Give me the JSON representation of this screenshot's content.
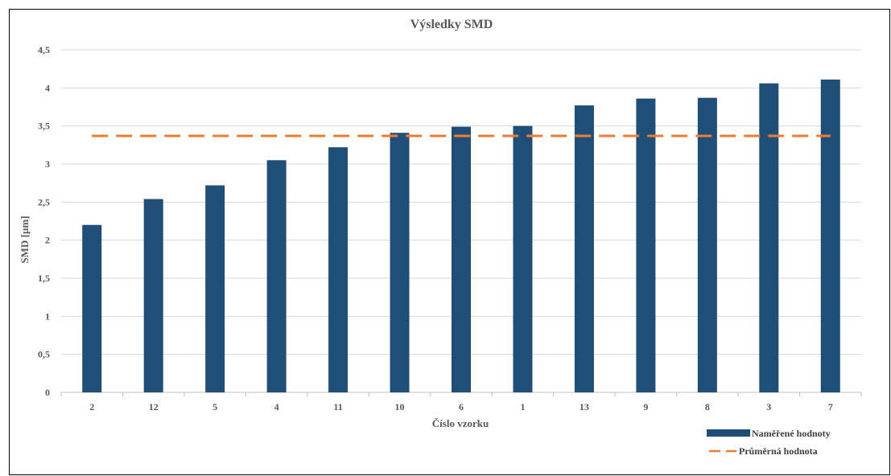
{
  "chart_data": {
    "type": "bar",
    "title": "Výsledky SMD",
    "xlabel": "Číslo vzorku",
    "ylabel": "SMD [µm]",
    "categories": [
      "2",
      "12",
      "5",
      "4",
      "11",
      "10",
      "6",
      "1",
      "13",
      "9",
      "8",
      "3",
      "7"
    ],
    "series": [
      {
        "name": "Naměřené hodnoty",
        "values": [
          2.2,
          2.54,
          2.72,
          3.05,
          3.22,
          3.41,
          3.49,
          3.5,
          3.77,
          3.86,
          3.87,
          4.06,
          4.11
        ],
        "color": "#1F4E79"
      }
    ],
    "average_line": {
      "name": "Průměrná hodnota",
      "value": 3.37,
      "color": "#ED7D31",
      "style": "dashed"
    },
    "ylim": [
      0,
      4.5
    ],
    "yticks": [
      "0",
      "0,5",
      "1",
      "1,5",
      "2",
      "2,5",
      "3",
      "3,5",
      "4",
      "4,5"
    ],
    "grid": true,
    "legend_position": "bottom-right"
  }
}
